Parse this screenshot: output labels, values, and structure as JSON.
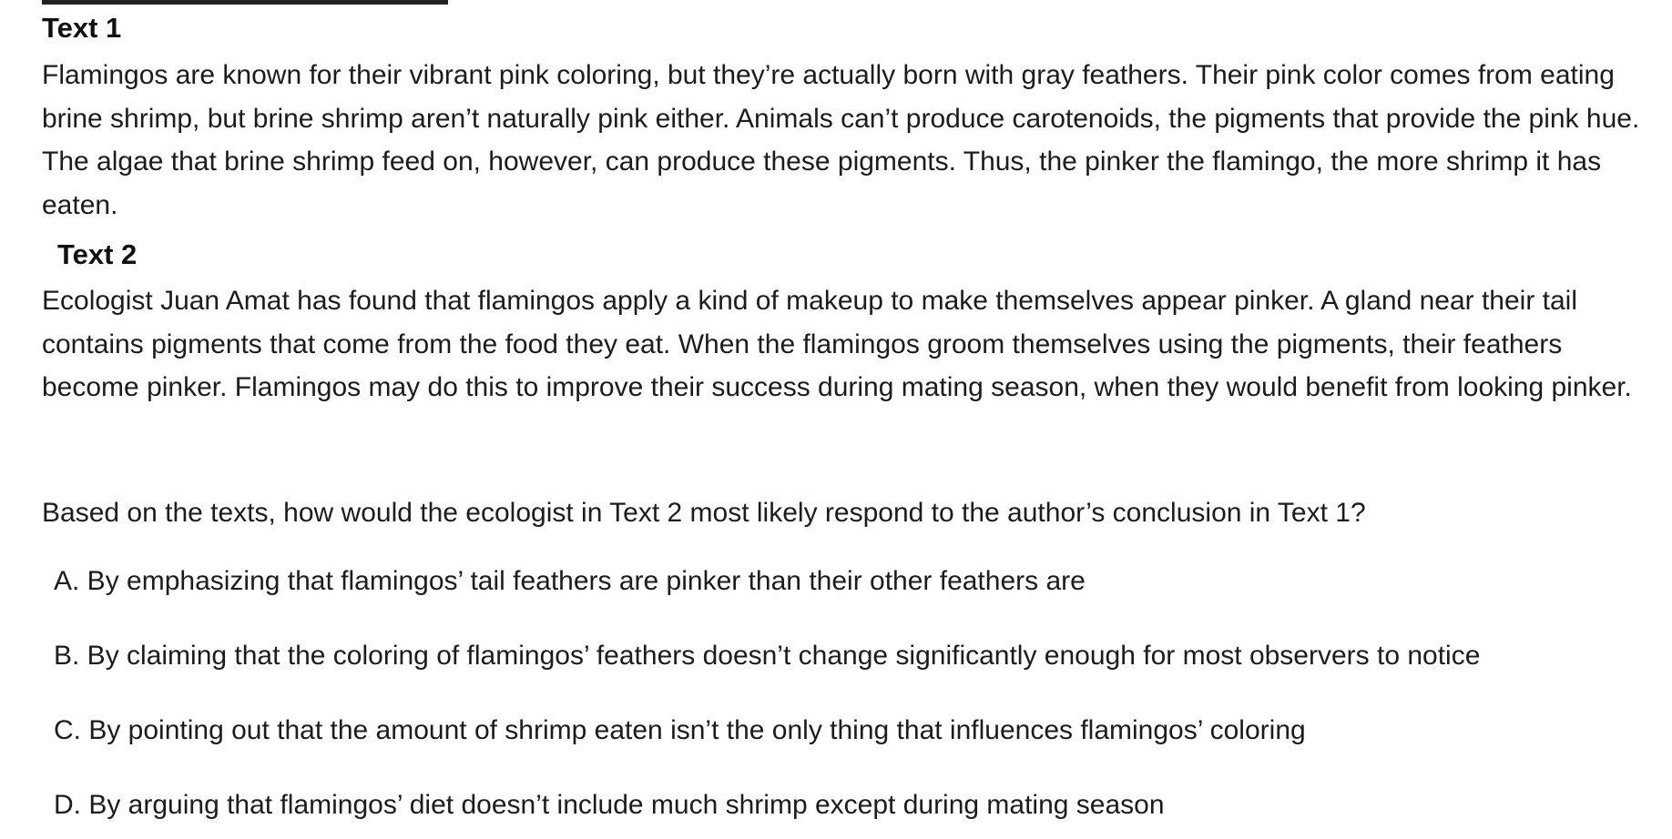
{
  "text1": {
    "heading": "Text 1",
    "body": "Flamingos are known for their vibrant pink coloring, but they’re actually born with gray feathers. Their pink color comes from eating brine shrimp, but brine shrimp aren’t naturally pink either. Animals can’t produce carotenoids, the pigments that provide the pink hue. The algae that brine shrimp feed on, however, can produce these pigments. Thus, the pinker the flamingo, the more shrimp it has eaten."
  },
  "text2": {
    "heading": "Text 2",
    "body": "Ecologist Juan Amat has found that flamingos apply a kind of makeup to make themselves appear pinker. A gland near their tail contains pigments that come from the food they eat. When the flamingos groom themselves using the pigments, their feathers become pinker. Flamingos may do this to improve their success during mating season, when they would benefit from looking pinker."
  },
  "question": "Based on the texts, how would the ecologist in Text 2 most likely respond to the author’s conclusion in Text 1?",
  "choices": [
    {
      "label": "A. By emphasizing that flamingos’ tail feathers are pinker than their other feathers are"
    },
    {
      "label": "B. By claiming that the coloring of flamingos’ feathers doesn’t change significantly enough for most observers to notice"
    },
    {
      "label": "C. By pointing out that the amount of shrimp eaten isn’t the only thing that influences flamingos’ coloring"
    },
    {
      "label": "D. By arguing that flamingos’ diet doesn’t include much shrimp except during mating season"
    }
  ]
}
